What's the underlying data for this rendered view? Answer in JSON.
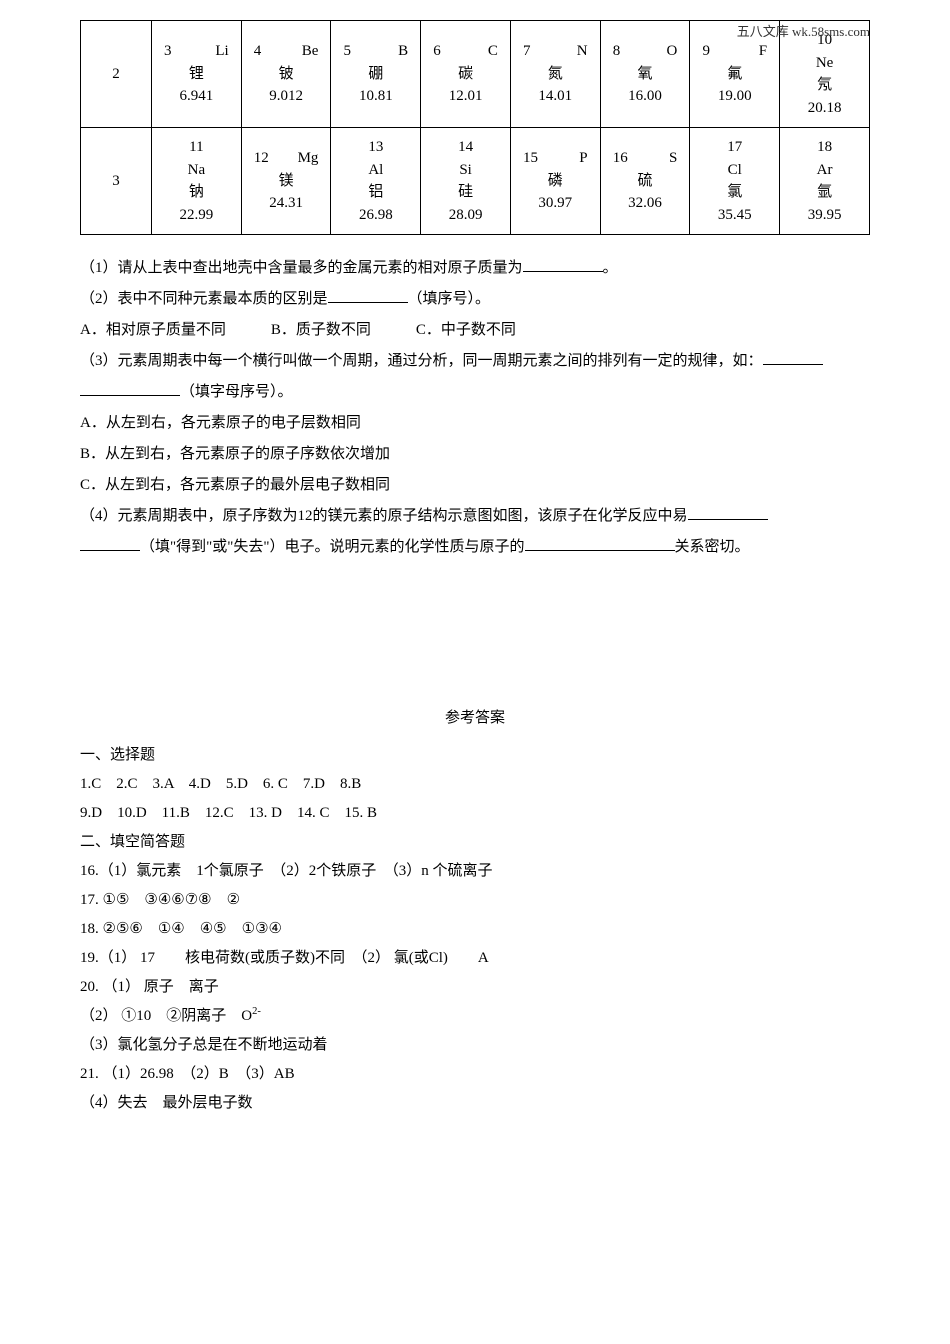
{
  "watermark": "五八文库 wk.58sms.com",
  "table": {
    "rows": [
      {
        "header": "2",
        "cells": [
          {
            "num": "3",
            "sym": "Li",
            "name": "锂",
            "mass": "6.941"
          },
          {
            "num": "4",
            "sym": "Be",
            "name": "铍",
            "mass": "9.012"
          },
          {
            "num": "5",
            "sym": "B",
            "name": "硼",
            "mass": "10.81"
          },
          {
            "num": "6",
            "sym": "C",
            "name": "碳",
            "mass": "12.01"
          },
          {
            "num": "7",
            "sym": "N",
            "name": "氮",
            "mass": "14.01"
          },
          {
            "num": "8",
            "sym": "O",
            "name": "氧",
            "mass": "16.00"
          },
          {
            "num": "9",
            "sym": "F",
            "name": "氟",
            "mass": "19.00"
          },
          {
            "num": "10",
            "sym": "Ne",
            "name": "氖",
            "mass": "20.18"
          }
        ]
      },
      {
        "header": "3",
        "cells": [
          {
            "num": "11",
            "sym": "Na",
            "name": "钠",
            "mass": "22.99"
          },
          {
            "num": "12",
            "sym": "Mg",
            "name": "镁",
            "mass": "24.31"
          },
          {
            "num": "13",
            "sym": "Al",
            "name": "铝",
            "mass": "26.98"
          },
          {
            "num": "14",
            "sym": "Si",
            "name": "硅",
            "mass": "28.09"
          },
          {
            "num": "15",
            "sym": "P",
            "name": "磷",
            "mass": "30.97"
          },
          {
            "num": "16",
            "sym": "S",
            "name": "硫",
            "mass": "32.06"
          },
          {
            "num": "17",
            "sym": "Cl",
            "name": "氯",
            "mass": "35.45"
          },
          {
            "num": "18",
            "sym": "Ar",
            "name": "氩",
            "mass": "39.95"
          }
        ]
      }
    ]
  },
  "q1_prefix": "（1）请从上表中查出地壳中含量最多的金属元素的相对原子质量为",
  "q1_suffix": "。",
  "q2_prefix": "（2）表中不同种元素最本质的区别是",
  "q2_suffix": "（填序号）。",
  "q2_optA": "A．相对原子质量不同",
  "q2_optB": "B．质子数不同",
  "q2_optC": "C．中子数不同",
  "q3_prefix": "（3）元素周期表中每一个横行叫做一个周期，通过分析，同一周期元素之间的排列有一定的规律，如：",
  "q3_line2_suffix": "（填字母序号）。",
  "q3_optA": "A．从左到右，各元素原子的电子层数相同",
  "q3_optB": "B．从左到右，各元素原子的原子序数依次增加",
  "q3_optC": "C．从左到右，各元素原子的最外层电子数相同",
  "q4_prefix": "（4）元素周期表中，原子序数为12的镁元素的原子结构示意图如图，该原子在化学反应中易",
  "q4_mid": "（填\"得到\"或\"失去\"）电子。说明元素的化学性质与原子的",
  "q4_suffix": "关系密切。",
  "answerTitle": "参考答案",
  "ans_sec1": "一、选择题",
  "ans_line1": "1.C　2.C　3.A　4.D　5.D　6. C　7.D　8.B",
  "ans_line2": "9.D　10.D　11.B　12.C　13. D　14. C　15. B",
  "ans_sec2": "二、填空简答题",
  "ans_16": "16.（1）氯元素　1个氯原子　（2）2个铁原子　（3）n 个硫离子",
  "ans_17": "17. ①⑤　③④⑥⑦⑧　②",
  "ans_18": "18. ②⑤⑥　①④　④⑤　①③④",
  "ans_19": "19.（1） 17　　核电荷数(或质子数)不同　（2） 氯(或Cl)　　A",
  "ans_20": "20. （1） 原子　离子",
  "ans_20b_prefix": "（2） ①10　②阴离子　O",
  "ans_20b_sup": "2-",
  "ans_20c": "（3）氯化氢分子总是在不断地运动着",
  "ans_21": "21. （1）26.98　（2）B　（3）AB",
  "ans_21b": "（4）失去　最外层电子数"
}
